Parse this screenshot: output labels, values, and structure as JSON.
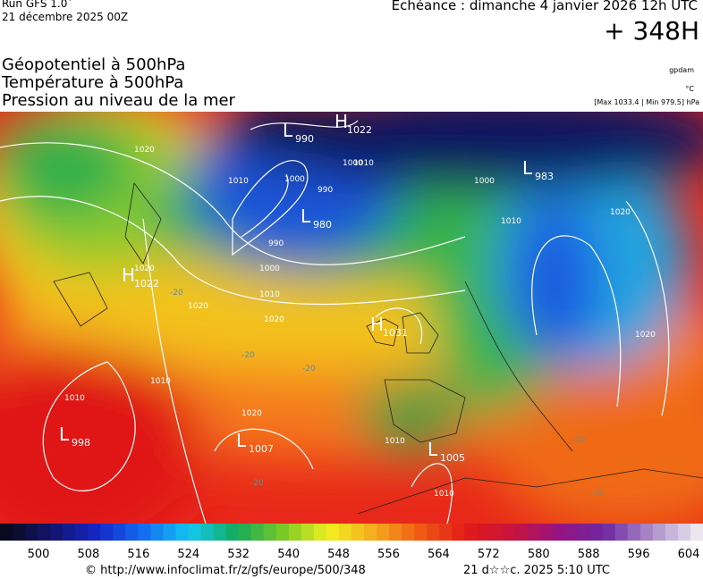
{
  "header": {
    "run": "Run GFS 1.0˚",
    "run_date": "21 décembre 2025 00Z",
    "valid": "Echéance : dimanche 4 janvier 2026 12h UTC",
    "lead": "+ 348H"
  },
  "layers": [
    "Géopotentiel à 500hPa",
    "Température à 500hPa",
    "Pression au niveau de la mer"
  ],
  "units": {
    "geopotential": "gpdam",
    "temperature": "°C",
    "pressure": "[Max 1033.4 | Min 979.5] hPa"
  },
  "centers": [
    {
      "kind": "L",
      "value": "990"
    },
    {
      "kind": "H",
      "value": "1022"
    },
    {
      "kind": "L",
      "value": "983"
    },
    {
      "kind": "L",
      "value": "980"
    },
    {
      "kind": "H",
      "value": "1022"
    },
    {
      "kind": "H",
      "value": "1031"
    },
    {
      "kind": "L",
      "value": "998"
    },
    {
      "kind": "L",
      "value": "1007"
    },
    {
      "kind": "L",
      "value": "1005"
    }
  ],
  "isobar_labels": [
    "1020",
    "1010",
    "1000",
    "1000",
    "990",
    "1000",
    "1010",
    "1020",
    "1020",
    "1010",
    "1020",
    "1010",
    "1010",
    "1020",
    "1010",
    "1020",
    "1010",
    "1000",
    "990",
    "1010",
    "1020"
  ],
  "temperature_labels": [
    "-20",
    "-20",
    "-20",
    "-20",
    "-20",
    "-20"
  ],
  "colorbar": {
    "labels": [
      500,
      508,
      516,
      524,
      532,
      540,
      548,
      556,
      564,
      572,
      580,
      588,
      596,
      604
    ]
  },
  "footer": {
    "source": "© http://www.infoclimat.fr/z/gfs/europe/500/348",
    "generated": "21 d☆☆c. 2025  5:10 UTC"
  }
}
